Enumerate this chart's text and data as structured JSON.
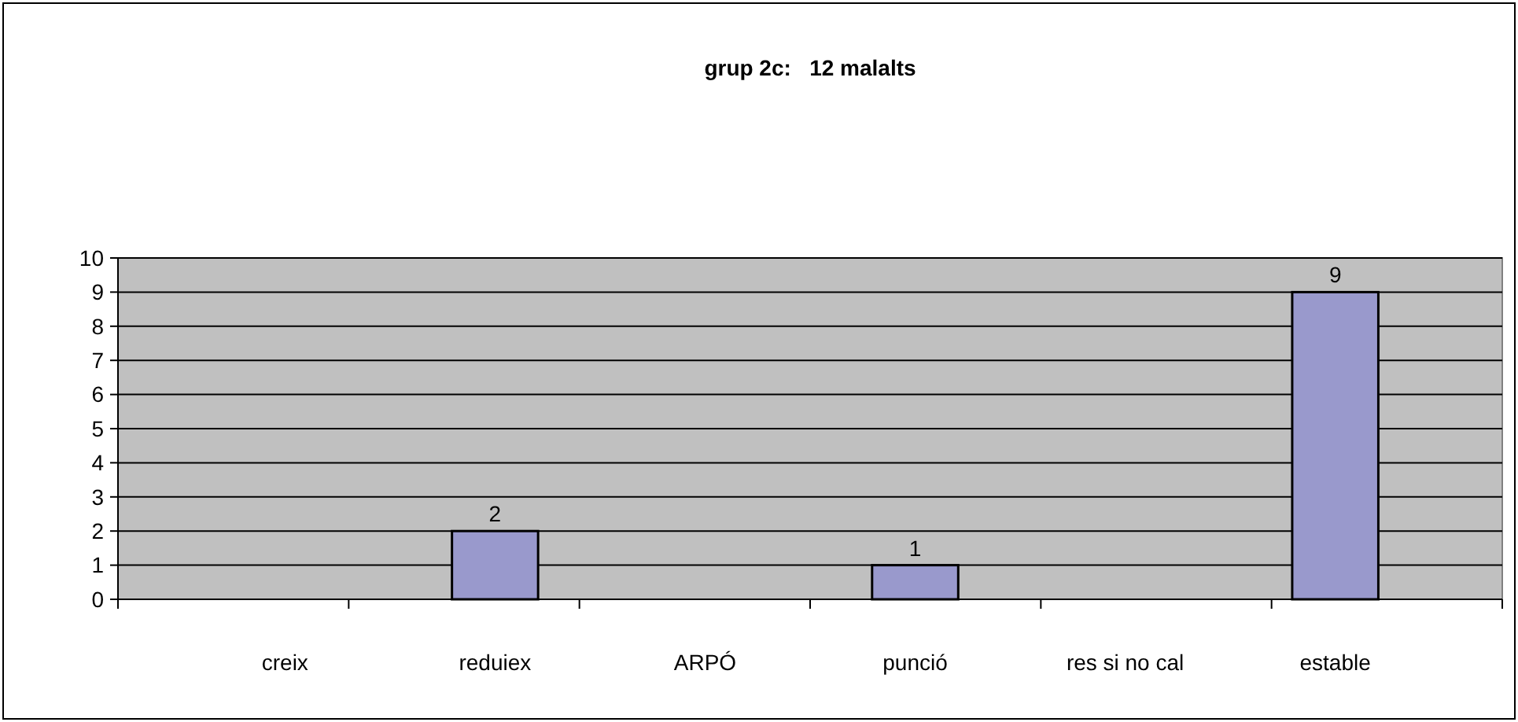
{
  "chart_data": {
    "type": "bar",
    "title": "grup 2c:   12 malalts",
    "categories": [
      "creix",
      "reduiex",
      "ARPÓ",
      "punció",
      "res si no cal",
      "estable"
    ],
    "values": [
      0,
      2,
      0,
      1,
      0,
      9
    ],
    "value_labels": [
      null,
      "2",
      null,
      "1",
      null,
      "9"
    ],
    "color": "#9999cc",
    "ylim": [
      0,
      10
    ],
    "yticks": [
      0,
      1,
      2,
      3,
      4,
      5,
      6,
      7,
      8,
      9,
      10
    ],
    "grid": "y"
  }
}
